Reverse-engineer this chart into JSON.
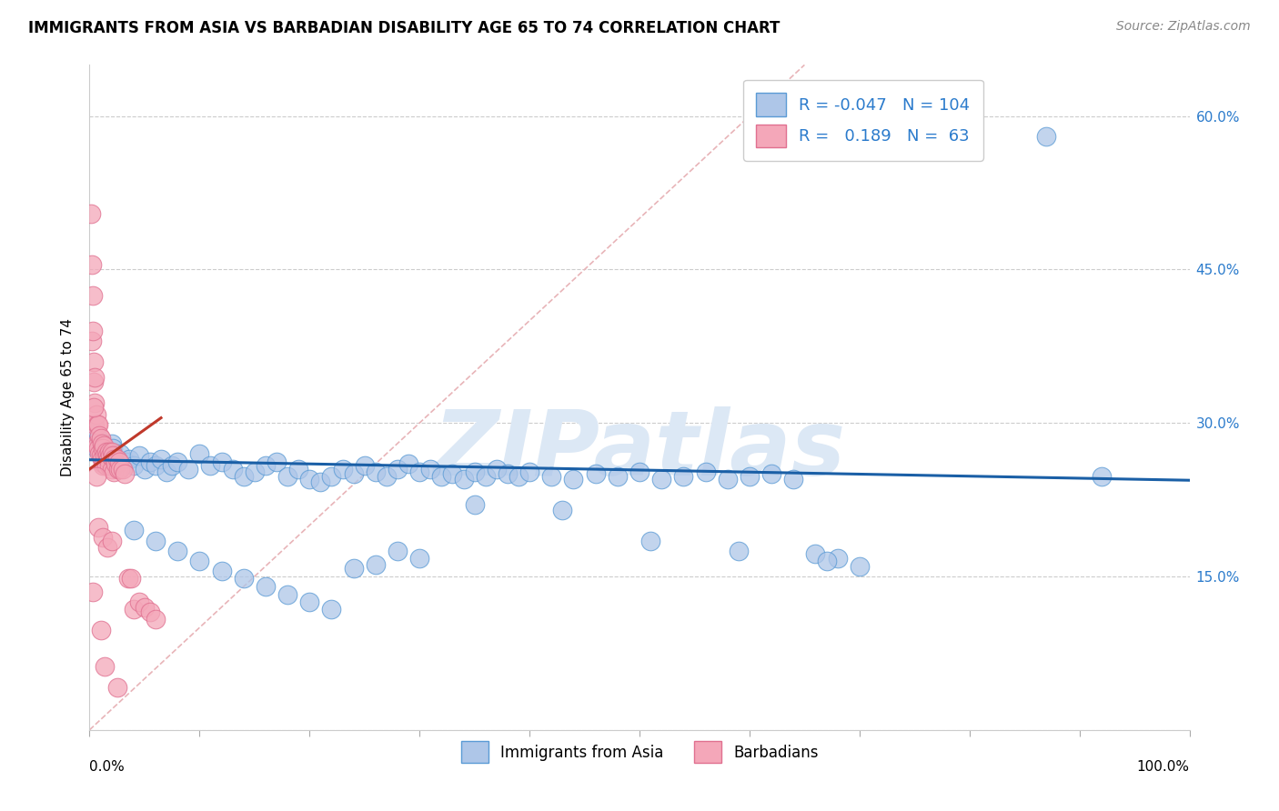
{
  "title": "IMMIGRANTS FROM ASIA VS BARBADIAN DISABILITY AGE 65 TO 74 CORRELATION CHART",
  "source": "Source: ZipAtlas.com",
  "ylabel": "Disability Age 65 to 74",
  "yticks": [
    0.0,
    0.15,
    0.3,
    0.45,
    0.6
  ],
  "ytick_labels": [
    "",
    "15.0%",
    "30.0%",
    "45.0%",
    "60.0%"
  ],
  "xlim": [
    0.0,
    1.0
  ],
  "ylim": [
    0.0,
    0.65
  ],
  "legend_color1": "#aec6e8",
  "legend_color2": "#f4a7b9",
  "scatter_asia_color": "#aec6e8",
  "scatter_asia_edge": "#5b9bd5",
  "scatter_barb_color": "#f4a7b9",
  "scatter_barb_edge": "#e07090",
  "trendline_asia_color": "#1a5fa6",
  "trendline_barb_color": "#c0392b",
  "diagonal_color": "#e8b4b8",
  "watermark": "ZIPatlas",
  "watermark_color": "#dce8f5",
  "asia_x": [
    0.002,
    0.003,
    0.004,
    0.005,
    0.006,
    0.007,
    0.008,
    0.009,
    0.01,
    0.011,
    0.012,
    0.013,
    0.014,
    0.015,
    0.016,
    0.017,
    0.018,
    0.019,
    0.02,
    0.021,
    0.022,
    0.024,
    0.026,
    0.028,
    0.03,
    0.033,
    0.036,
    0.04,
    0.045,
    0.05,
    0.055,
    0.06,
    0.065,
    0.07,
    0.075,
    0.08,
    0.09,
    0.1,
    0.11,
    0.12,
    0.13,
    0.14,
    0.15,
    0.16,
    0.17,
    0.18,
    0.19,
    0.2,
    0.21,
    0.22,
    0.23,
    0.24,
    0.25,
    0.26,
    0.27,
    0.28,
    0.29,
    0.3,
    0.31,
    0.32,
    0.33,
    0.34,
    0.35,
    0.36,
    0.37,
    0.38,
    0.39,
    0.4,
    0.42,
    0.44,
    0.46,
    0.48,
    0.5,
    0.52,
    0.54,
    0.56,
    0.58,
    0.6,
    0.62,
    0.64,
    0.66,
    0.68,
    0.7,
    0.35,
    0.43,
    0.51,
    0.59,
    0.67,
    0.04,
    0.06,
    0.08,
    0.1,
    0.12,
    0.14,
    0.16,
    0.18,
    0.2,
    0.22,
    0.24,
    0.26,
    0.28,
    0.3,
    0.87,
    0.92
  ],
  "asia_y": [
    0.29,
    0.285,
    0.28,
    0.295,
    0.275,
    0.28,
    0.285,
    0.278,
    0.272,
    0.268,
    0.275,
    0.262,
    0.265,
    0.27,
    0.26,
    0.268,
    0.272,
    0.265,
    0.28,
    0.275,
    0.268,
    0.265,
    0.26,
    0.27,
    0.258,
    0.262,
    0.265,
    0.258,
    0.268,
    0.255,
    0.262,
    0.258,
    0.265,
    0.252,
    0.258,
    0.262,
    0.255,
    0.27,
    0.258,
    0.262,
    0.255,
    0.248,
    0.252,
    0.258,
    0.262,
    0.248,
    0.255,
    0.245,
    0.242,
    0.248,
    0.255,
    0.25,
    0.258,
    0.252,
    0.248,
    0.255,
    0.26,
    0.252,
    0.255,
    0.248,
    0.25,
    0.245,
    0.252,
    0.248,
    0.255,
    0.25,
    0.248,
    0.252,
    0.248,
    0.245,
    0.25,
    0.248,
    0.252,
    0.245,
    0.248,
    0.252,
    0.245,
    0.248,
    0.25,
    0.245,
    0.172,
    0.168,
    0.16,
    0.22,
    0.215,
    0.185,
    0.175,
    0.165,
    0.195,
    0.185,
    0.175,
    0.165,
    0.155,
    0.148,
    0.14,
    0.132,
    0.125,
    0.118,
    0.158,
    0.162,
    0.175,
    0.168,
    0.58,
    0.248
  ],
  "barb_x": [
    0.001,
    0.002,
    0.002,
    0.003,
    0.003,
    0.004,
    0.004,
    0.005,
    0.005,
    0.005,
    0.006,
    0.006,
    0.007,
    0.007,
    0.008,
    0.008,
    0.009,
    0.009,
    0.01,
    0.01,
    0.011,
    0.011,
    0.012,
    0.012,
    0.013,
    0.013,
    0.014,
    0.015,
    0.015,
    0.016,
    0.017,
    0.018,
    0.018,
    0.019,
    0.02,
    0.02,
    0.021,
    0.022,
    0.022,
    0.024,
    0.025,
    0.026,
    0.027,
    0.028,
    0.03,
    0.032,
    0.035,
    0.038,
    0.04,
    0.045,
    0.05,
    0.055,
    0.06,
    0.003,
    0.008,
    0.012,
    0.016,
    0.02,
    0.025,
    0.004,
    0.006,
    0.01,
    0.014
  ],
  "barb_y": [
    0.505,
    0.455,
    0.38,
    0.425,
    0.39,
    0.36,
    0.34,
    0.345,
    0.32,
    0.298,
    0.308,
    0.28,
    0.298,
    0.278,
    0.298,
    0.275,
    0.288,
    0.27,
    0.285,
    0.268,
    0.28,
    0.265,
    0.275,
    0.258,
    0.278,
    0.26,
    0.268,
    0.272,
    0.258,
    0.268,
    0.265,
    0.272,
    0.258,
    0.268,
    0.272,
    0.255,
    0.268,
    0.265,
    0.252,
    0.26,
    0.265,
    0.255,
    0.262,
    0.255,
    0.255,
    0.25,
    0.148,
    0.148,
    0.118,
    0.125,
    0.12,
    0.115,
    0.108,
    0.135,
    0.198,
    0.188,
    0.178,
    0.185,
    0.042,
    0.315,
    0.248,
    0.098,
    0.062
  ],
  "asia_trend_x0": 0.0,
  "asia_trend_x1": 1.0,
  "asia_trend_y0": 0.264,
  "asia_trend_y1": 0.244,
  "barb_trend_x0": 0.0,
  "barb_trend_x1": 0.065,
  "barb_trend_y0": 0.255,
  "barb_trend_y1": 0.305
}
